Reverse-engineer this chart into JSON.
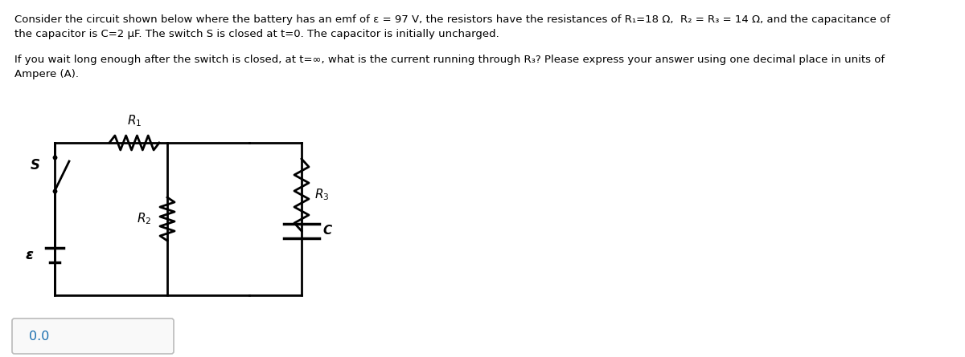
{
  "line1": "Consider the circuit shown below where the battery has an emf of ε = 97 V, the resistors have the resistances of R₁=18 Ω,  R₂ = R₃ = 14 Ω, and the capacitance of",
  "line2": "the capacitor is C=2 μF. The switch S is closed at t=0. The capacitor is initially uncharged.",
  "line3": "If you wait long enough after the switch is closed, at t=∞, what is the current running through R₃? Please express your answer using one decimal place in units of",
  "line4": "Ampere (A).",
  "answer": "0.0",
  "bg_color": "#ffffff",
  "fg_color": "#000000",
  "answer_color": "#1a6faf"
}
